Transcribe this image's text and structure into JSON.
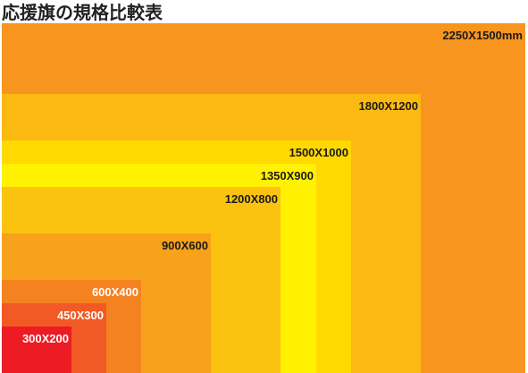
{
  "title": "応援旗の規格比較表",
  "sizes": [
    {
      "label": "2250X1500mm",
      "width": 2250,
      "height": 1500,
      "fill": "#F7951F",
      "text_color": "#1a1a1a"
    },
    {
      "label": "1800X1200",
      "width": 1800,
      "height": 1200,
      "fill": "#FBB912",
      "text_color": "#1a1a1a"
    },
    {
      "label": "1500X1000",
      "width": 1500,
      "height": 1000,
      "fill": "#FFD900",
      "text_color": "#1a1a1a"
    },
    {
      "label": "1350X900",
      "width": 1350,
      "height": 900,
      "fill": "#FFF100",
      "text_color": "#1a1a1a"
    },
    {
      "label": "1200X800",
      "width": 1200,
      "height": 800,
      "fill": "#FBC210",
      "text_color": "#1a1a1a"
    },
    {
      "label": "900X600",
      "width": 900,
      "height": 600,
      "fill": "#F8A11C",
      "text_color": "#1a1a1a"
    },
    {
      "label": "600X400",
      "width": 600,
      "height": 400,
      "fill": "#F58220",
      "text_color": "#ffffff"
    },
    {
      "label": "450X300",
      "width": 450,
      "height": 300,
      "fill": "#F15A24",
      "text_color": "#ffffff"
    },
    {
      "label": "300X200",
      "width": 300,
      "height": 200,
      "fill": "#ED1C24",
      "text_color": "#ffffff"
    }
  ]
}
